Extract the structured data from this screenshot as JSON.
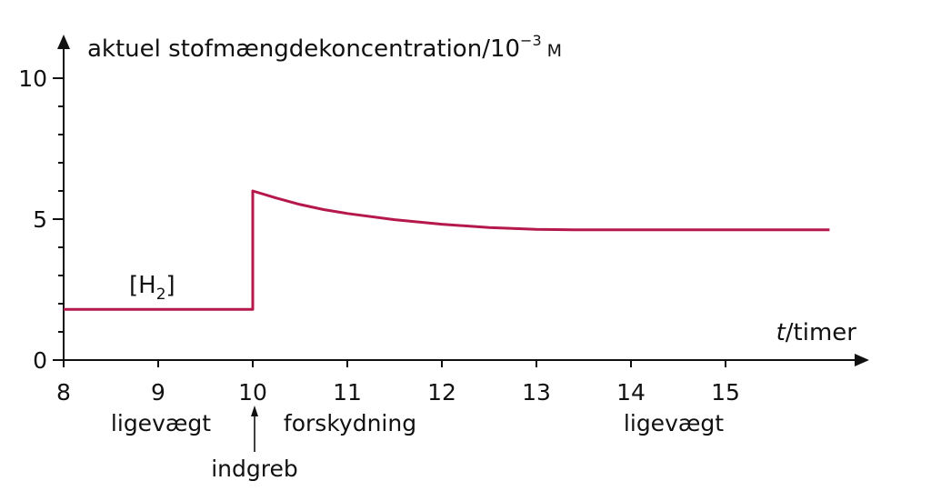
{
  "colors": {
    "series": "#b5184a",
    "axis": "#111111",
    "background": "#ffffff"
  },
  "chart_data": {
    "type": "line",
    "title": "",
    "ylabel": "aktuel stofmængdekoncentration/10",
    "ylabel_exponent": "−3",
    "ylabel_unit": "M",
    "xlabel_var": "t",
    "xlabel_unit": "/timer",
    "xlim": [
      8,
      16.1
    ],
    "ylim": [
      0,
      10
    ],
    "x_ticks": [
      8,
      9,
      10,
      11,
      12,
      13,
      14,
      15
    ],
    "y_ticks_labeled": [
      0,
      5,
      10
    ],
    "y_minor_step": 1,
    "grid": false,
    "series": [
      {
        "name": "[H2]",
        "name_main": "[H",
        "name_sub": "2",
        "name_end": "]",
        "points": [
          [
            8,
            1.8
          ],
          [
            10,
            1.8
          ],
          [
            10,
            6.0
          ],
          [
            10.25,
            5.75
          ],
          [
            10.5,
            5.52
          ],
          [
            10.75,
            5.34
          ],
          [
            11,
            5.2
          ],
          [
            11.5,
            4.98
          ],
          [
            12,
            4.82
          ],
          [
            12.5,
            4.7
          ],
          [
            13,
            4.64
          ],
          [
            13.4,
            4.62
          ],
          [
            14,
            4.62
          ],
          [
            15,
            4.62
          ],
          [
            16.1,
            4.62
          ]
        ]
      }
    ],
    "annotations": {
      "equilibrium_before": "ligevægt",
      "intervention": "indgreb",
      "shift": "forskydning",
      "equilibrium_after": "ligevægt"
    }
  }
}
